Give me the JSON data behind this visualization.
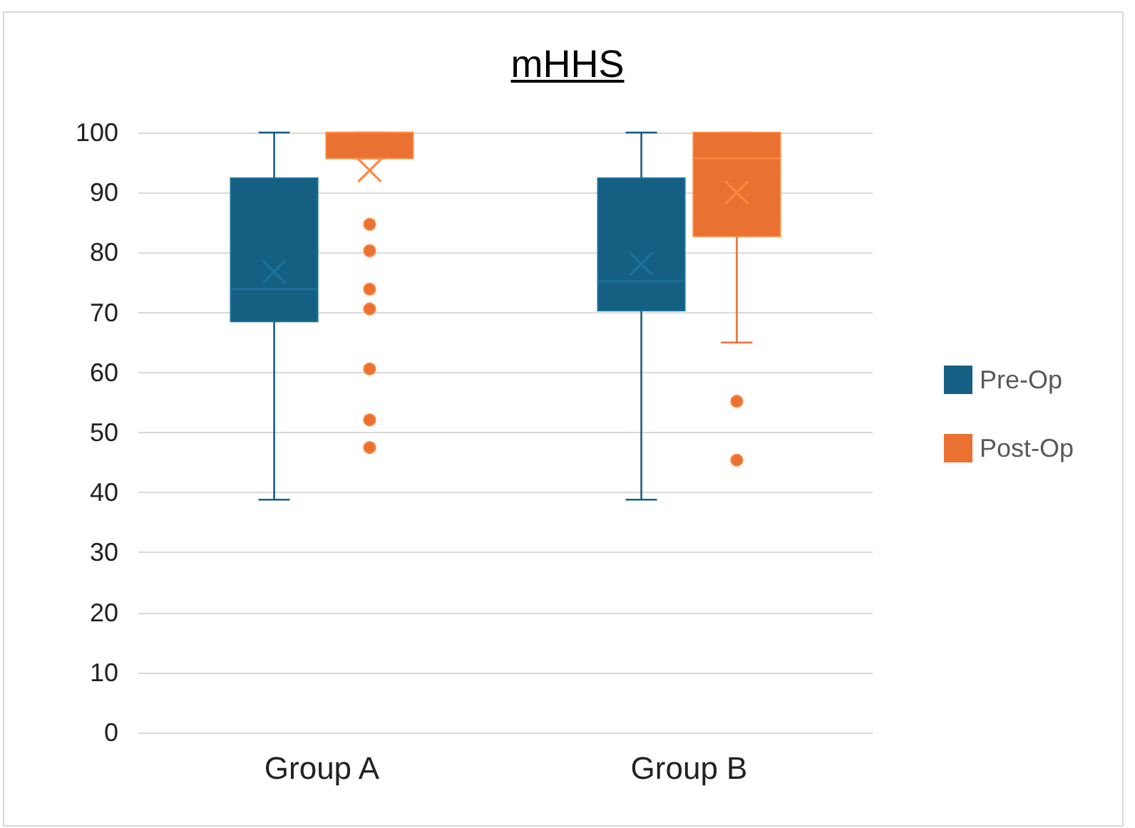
{
  "chart_data": {
    "type": "box",
    "title": "mHHS",
    "categories": [
      "Group A",
      "Group B"
    ],
    "ylim": [
      0,
      100
    ],
    "yticks": [
      0,
      10,
      20,
      30,
      40,
      50,
      60,
      70,
      80,
      90,
      100
    ],
    "grid": "y",
    "legend": "right",
    "series": [
      {
        "name": "Pre-Op",
        "color": "#156082",
        "boxes": [
          {
            "low": 38.8,
            "q1": 68.5,
            "median": 73.9,
            "q3": 92.4,
            "high": 100,
            "mean": 76.8
          },
          {
            "low": 38.8,
            "q1": 70.3,
            "median": 75.2,
            "q3": 92.4,
            "high": 100,
            "mean": 78.1
          }
        ]
      },
      {
        "name": "Post-Op",
        "color": "#e97132",
        "boxes": [
          {
            "low": 95.7,
            "q1": 95.7,
            "median": 100,
            "q3": 100,
            "high": 100,
            "mean": 93.7,
            "outliers": [
              84.7,
              80.3,
              73.9,
              70.6,
              60.6,
              52.1,
              47.5
            ]
          },
          {
            "low": 65.0,
            "q1": 82.7,
            "median": 95.7,
            "q3": 100,
            "high": 100,
            "mean": 90.0,
            "outliers": [
              55.2,
              45.4
            ]
          }
        ]
      }
    ]
  }
}
